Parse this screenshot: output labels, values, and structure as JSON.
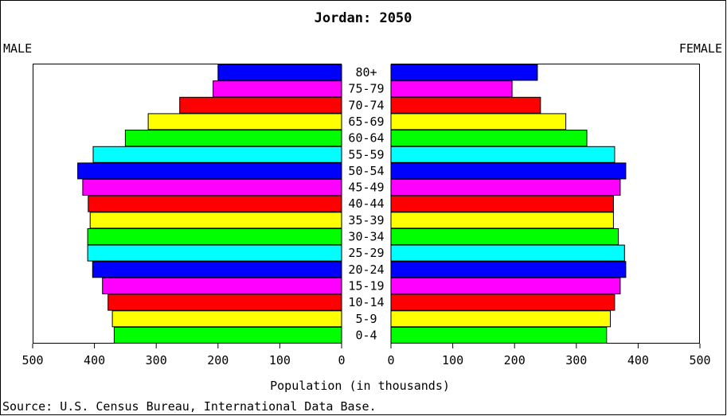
{
  "chart_data": {
    "type": "bar",
    "title": "Jordan: 2050",
    "left_label": "MALE",
    "right_label": "FEMALE",
    "xlabel": "Population (in thousands)",
    "source": "Source: U.S. Census Bureau, International Data Base.",
    "xlim": [
      0,
      500
    ],
    "ticks": [
      "500",
      "400",
      "300",
      "200",
      "100",
      "0"
    ],
    "ticks_right": [
      "0",
      "100",
      "200",
      "300",
      "400",
      "500"
    ],
    "categories": [
      "80+",
      "75-79",
      "70-74",
      "65-69",
      "60-64",
      "55-59",
      "50-54",
      "45-49",
      "40-44",
      "35-39",
      "30-34",
      "25-29",
      "20-24",
      "15-19",
      "10-14",
      "5-9",
      "0-4"
    ],
    "series": [
      {
        "name": "MALE",
        "values": [
          200,
          208,
          262,
          313,
          350,
          402,
          427,
          419,
          410,
          407,
          411,
          411,
          403,
          387,
          378,
          371,
          368
        ]
      },
      {
        "name": "FEMALE",
        "values": [
          237,
          196,
          242,
          283,
          317,
          362,
          380,
          371,
          360,
          360,
          368,
          378,
          380,
          371,
          362,
          355,
          349
        ]
      }
    ],
    "colors": [
      "#0000ff",
      "#ff00ff",
      "#ff0000",
      "#ffff00",
      "#00ff00",
      "#00ffff",
      "#0000ff",
      "#ff00ff",
      "#ff0000",
      "#ffff00",
      "#00ff00",
      "#00ffff",
      "#0000ff",
      "#ff00ff",
      "#ff0000",
      "#ffff00",
      "#00ff00"
    ],
    "grid": false,
    "legend": "none"
  }
}
